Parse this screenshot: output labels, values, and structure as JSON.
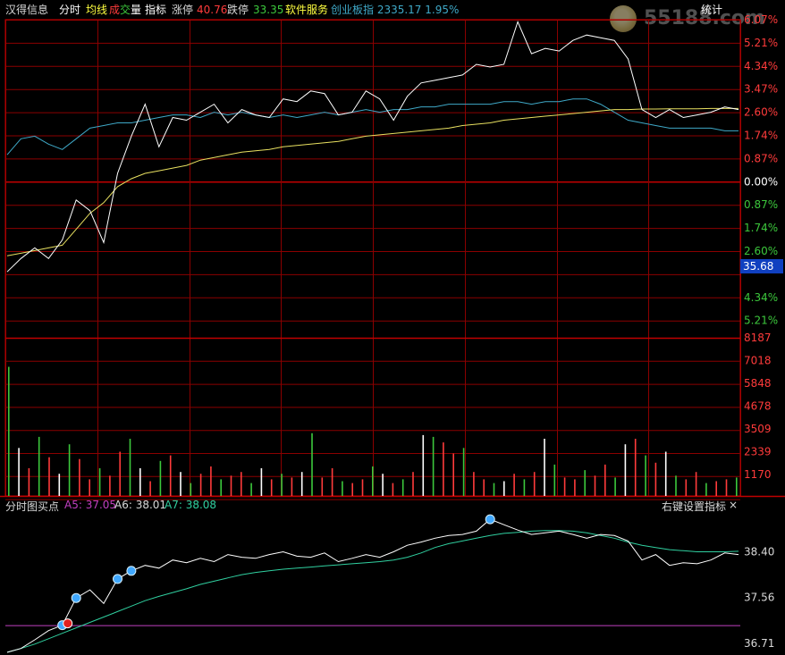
{
  "header": {
    "stock_name": "汉得信息",
    "tab_intraday": "分时",
    "avg_line": "均线",
    "cheng": "成",
    "jiao": "交",
    "liang": "量",
    "indicator": "指标",
    "limit_up_label": "涨停",
    "limit_up_value": "40.76",
    "limit_down_label": "跌停",
    "limit_down_value": "33.35",
    "sector": "软件服务",
    "index_info": "创业板指 2335.17 1.95%",
    "stats": "统计",
    "watermark": "55188.com"
  },
  "colors": {
    "background": "#000000",
    "grid": "#8b0000",
    "grid_bold": "#c00000",
    "price_line": "#ffffff",
    "index_line": "#3fa9c8",
    "avg_line": "#e8e060",
    "up": "#ff3b3b",
    "down": "#3cc83c",
    "ind_a5": "#c040c0",
    "ind_a7": "#30d0a0"
  },
  "current_price_label": "35.68",
  "chart_data": {
    "type": "line",
    "price_axis_right": [
      "6.07%",
      "5.21%",
      "4.34%",
      "3.47%",
      "2.60%",
      "1.74%",
      "0.87%",
      "0.00%",
      "0.87%",
      "1.74%",
      "2.60%",
      "",
      "4.34%",
      "5.21%"
    ],
    "price_pct_series": [
      -3.5,
      -3.0,
      -2.6,
      -3.0,
      -2.3,
      -0.8,
      -1.2,
      -2.4,
      0.2,
      1.6,
      2.8,
      1.2,
      2.3,
      2.2,
      2.5,
      2.8,
      2.1,
      2.6,
      2.4,
      2.3,
      3.0,
      2.9,
      3.3,
      3.2,
      2.4,
      2.5,
      3.3,
      3.0,
      2.2,
      3.1,
      3.6,
      3.7,
      3.8,
      3.9,
      4.3,
      4.2,
      4.3,
      5.9,
      4.7,
      4.9,
      4.8,
      5.2,
      5.4,
      5.3,
      5.2,
      4.5,
      2.6,
      2.3,
      2.6,
      2.3,
      2.4,
      2.5,
      2.7,
      2.6
    ],
    "avg_pct_series": [
      -2.9,
      -2.8,
      -2.7,
      -2.6,
      -2.5,
      -1.9,
      -1.3,
      -0.9,
      -0.3,
      0.0,
      0.2,
      0.3,
      0.4,
      0.5,
      0.7,
      0.8,
      0.9,
      1.0,
      1.05,
      1.1,
      1.2,
      1.25,
      1.3,
      1.35,
      1.4,
      1.5,
      1.6,
      1.65,
      1.7,
      1.75,
      1.8,
      1.85,
      1.9,
      2.0,
      2.05,
      2.1,
      2.2,
      2.25,
      2.3,
      2.35,
      2.4,
      2.45,
      2.5,
      2.55,
      2.6,
      2.6,
      2.62,
      2.62,
      2.63,
      2.63,
      2.63,
      2.64,
      2.64,
      2.64
    ],
    "index_pct_series": [
      0.9,
      1.5,
      1.6,
      1.3,
      1.1,
      1.5,
      1.9,
      2.0,
      2.1,
      2.1,
      2.2,
      2.3,
      2.4,
      2.4,
      2.3,
      2.5,
      2.4,
      2.5,
      2.4,
      2.3,
      2.4,
      2.3,
      2.4,
      2.5,
      2.4,
      2.5,
      2.6,
      2.5,
      2.6,
      2.6,
      2.7,
      2.7,
      2.8,
      2.8,
      2.8,
      2.8,
      2.9,
      2.9,
      2.8,
      2.9,
      2.9,
      3.0,
      3.0,
      2.8,
      2.5,
      2.2,
      2.1,
      2.0,
      1.9,
      1.9,
      1.9,
      1.9,
      1.8,
      1.8
    ],
    "volume_axis": [
      "8187",
      "7018",
      "5848",
      "4678",
      "3509",
      "2339",
      "1170"
    ],
    "volume_values": [
      7000,
      2600,
      1500,
      3200,
      2100,
      1200,
      2800,
      2000,
      900,
      1500,
      1100,
      2400,
      3100,
      1500,
      800,
      1900,
      2200,
      1300,
      700,
      1200,
      1600,
      900,
      1100,
      1300,
      700,
      1500,
      900,
      1200,
      1000,
      1300,
      3400,
      1000,
      1500,
      800,
      700,
      900,
      1600,
      1200,
      700,
      900,
      1300,
      3300,
      3200,
      2900,
      2300,
      2600,
      1300,
      900,
      700,
      800,
      1200,
      900,
      1300,
      3100,
      1700,
      1000,
      900,
      1400,
      1100,
      1700,
      1000,
      2800,
      3100,
      2200,
      1800,
      2400,
      1100,
      900,
      1300,
      700,
      800,
      900,
      1000
    ],
    "indicator": {
      "name": "分时图买点",
      "a5_label": "A5: 37.05",
      "a6_label": "A6: 38.01",
      "a7_label": "A7: 38.08",
      "settings": "右键设置指标",
      "close": "×",
      "axis": [
        "38.40",
        "37.56",
        "36.71"
      ],
      "line_series": [
        36.55,
        36.62,
        36.78,
        36.95,
        37.05,
        37.55,
        37.7,
        37.45,
        37.9,
        38.05,
        38.15,
        38.1,
        38.25,
        38.2,
        38.28,
        38.22,
        38.35,
        38.3,
        38.28,
        38.35,
        38.4,
        38.32,
        38.3,
        38.38,
        38.22,
        38.28,
        38.35,
        38.3,
        38.4,
        38.52,
        38.58,
        38.65,
        38.7,
        38.72,
        38.78,
        39.0,
        38.9,
        38.8,
        38.72,
        38.75,
        38.78,
        38.72,
        38.65,
        38.72,
        38.7,
        38.6,
        38.25,
        38.35,
        38.15,
        38.2,
        38.18,
        38.25,
        38.38,
        38.35
      ],
      "smooth_series": [
        36.55,
        36.62,
        36.7,
        36.8,
        36.9,
        37.0,
        37.1,
        37.2,
        37.3,
        37.4,
        37.5,
        37.58,
        37.65,
        37.72,
        37.8,
        37.86,
        37.92,
        37.98,
        38.02,
        38.05,
        38.08,
        38.1,
        38.12,
        38.14,
        38.16,
        38.18,
        38.2,
        38.22,
        38.25,
        38.3,
        38.38,
        38.48,
        38.55,
        38.6,
        38.65,
        38.7,
        38.74,
        38.76,
        38.78,
        38.79,
        38.79,
        38.78,
        38.75,
        38.7,
        38.65,
        38.58,
        38.52,
        38.48,
        38.44,
        38.42,
        38.4,
        38.4,
        38.4,
        38.41
      ],
      "hline_value": 37.05
    }
  }
}
